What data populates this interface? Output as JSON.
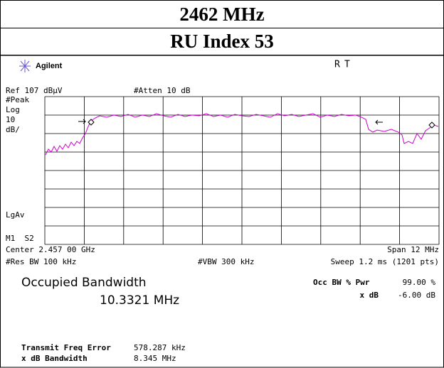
{
  "header": {
    "title_1": "2462 MHz",
    "title_2": "RU Index 53"
  },
  "screen": {
    "brand": "Agilent",
    "status_r": "R",
    "status_t": "T",
    "ref": "Ref 107 dBµV",
    "atten": "#Atten 10 dB",
    "left_labels": [
      "#Peak",
      "Log",
      "10",
      "dB/",
      "LgAv",
      "M1  S2"
    ],
    "center": "Center 2.457 00 GHz",
    "span": "Span 12 MHz",
    "res_bw": "#Res BW 100 kHz",
    "vbw": "#VBW 300 kHz",
    "sweep": "Sweep 1.2 ms (1201 pts)",
    "occ_title": "Occupied Bandwidth",
    "occ_value": "10.3321 MHz",
    "occ_pwr_label": "Occ BW % Pwr",
    "occ_pwr_value": "99.00 %",
    "xdb_label": "x dB",
    "xdb_value": "-6.00 dB",
    "tfe_label": "Transmit Freq Error",
    "tfe_value": "578.287 kHz",
    "xdbbw_label": "x dB Bandwidth",
    "xdbbw_value": "8.345 MHz"
  }
}
